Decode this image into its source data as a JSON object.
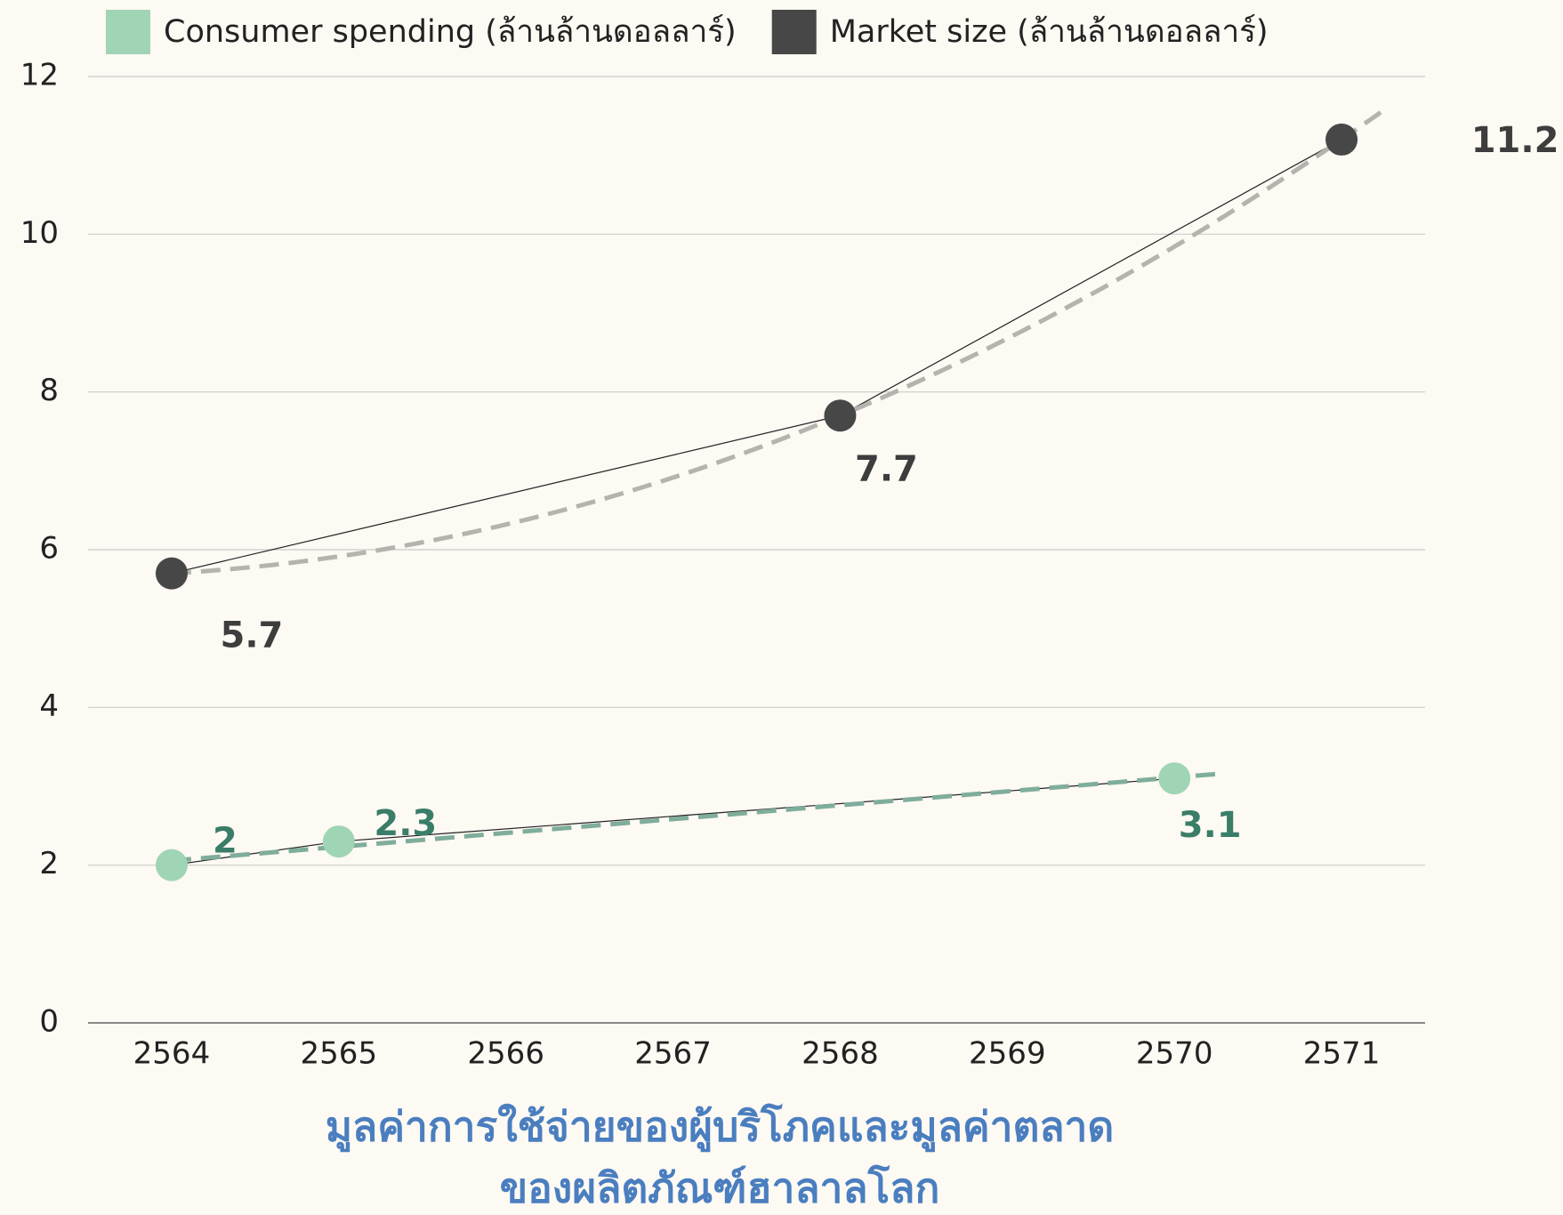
{
  "chart_data": {
    "type": "line",
    "title": [
      "มูลค่าการใช้จ่ายของผู้บริโภคและมูลค่าตลาด",
      "ของผลิตภัณฑ์ฮาลาลโลก"
    ],
    "xlim": [
      2563.5,
      2571.5
    ],
    "xticks": [
      2564,
      2565,
      2566,
      2567,
      2568,
      2569,
      2570,
      2571
    ],
    "ylim": [
      0,
      12
    ],
    "yticks": [
      0,
      2,
      4,
      6,
      8,
      10,
      12
    ],
    "grid": true,
    "legend": "top",
    "series": [
      {
        "name": "Consumer spending (ล้านล้านดอลลาร์)",
        "color": "#9fd5b5",
        "label_color": "#3a7d68",
        "trend_color": "#7fad9c",
        "trendline": "linear",
        "x": [
          2564,
          2565,
          2570
        ],
        "values": [
          2,
          2.3,
          3.1
        ]
      },
      {
        "name": "Market size (ล้านล้านดอลลาร์)",
        "color": "#474747",
        "label_color": "#3d3d3d",
        "trend_color": "#b5b3ad",
        "trendline": "polynomial",
        "x": [
          2564,
          2568,
          2571
        ],
        "values": [
          5.7,
          7.7,
          11.2
        ]
      }
    ]
  }
}
